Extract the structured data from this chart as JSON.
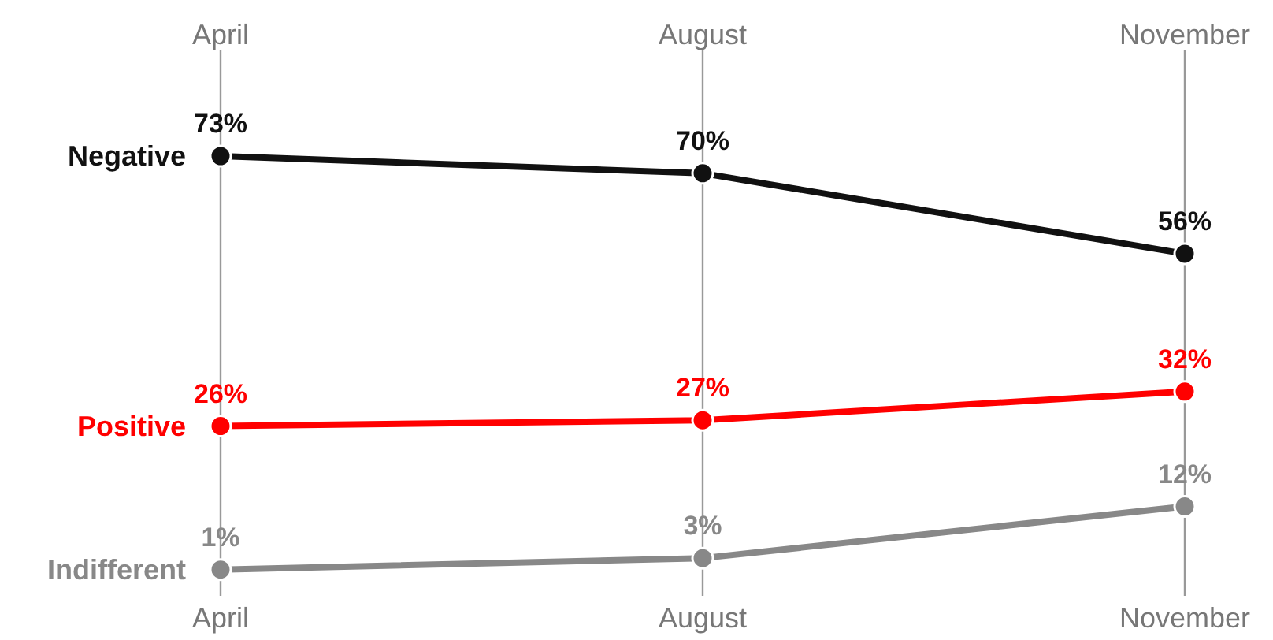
{
  "chart_data": {
    "type": "line",
    "categories": [
      "April",
      "August",
      "November"
    ],
    "series": [
      {
        "name": "Negative",
        "color": "#111111",
        "values": [
          73,
          70,
          56
        ],
        "value_labels": [
          "73%",
          "70%",
          "56%"
        ]
      },
      {
        "name": "Positive",
        "color": "#ff0000",
        "values": [
          26,
          27,
          32
        ],
        "value_labels": [
          "26%",
          "27%",
          "32%"
        ]
      },
      {
        "name": "Indifferent",
        "color": "#888888",
        "values": [
          1,
          3,
          12
        ],
        "value_labels": [
          "1%",
          "3%",
          "12%"
        ]
      }
    ],
    "grid": "x",
    "marker": "circle",
    "line_style": "solid"
  }
}
